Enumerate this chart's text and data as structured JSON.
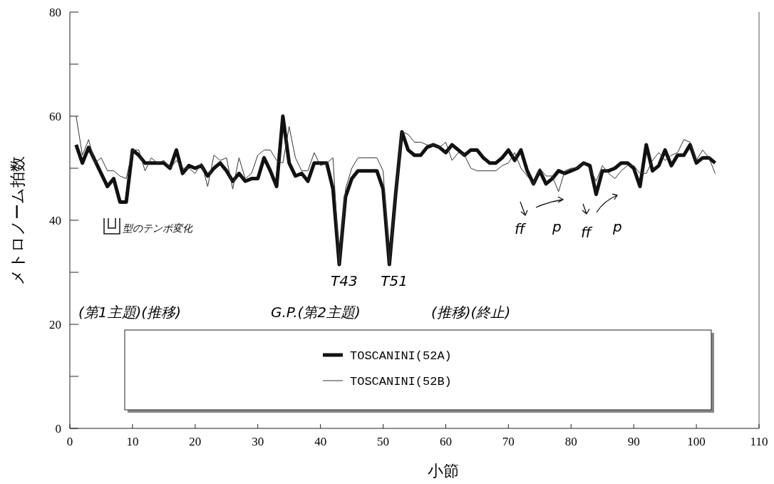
{
  "chart_data": {
    "type": "line",
    "xlabel": "小節",
    "ylabel": "メトロノーム拍数",
    "xlim": [
      0,
      110
    ],
    "xticks": [
      0,
      10,
      20,
      30,
      40,
      50,
      60,
      70,
      80,
      90,
      100,
      110
    ],
    "ylim": [
      0,
      80
    ],
    "yticks": [
      0,
      {
        "value": 10,
        "label": null
      },
      20,
      {
        "value": 30,
        "label": null
      },
      40,
      {
        "value": 50,
        "label": null
      },
      60,
      {
        "value": 70,
        "label": null
      },
      80
    ],
    "grid": false,
    "legend": "bottom",
    "x": [
      1,
      2,
      3,
      4,
      5,
      6,
      7,
      8,
      9,
      10,
      11,
      12,
      13,
      14,
      15,
      16,
      17,
      18,
      19,
      20,
      21,
      22,
      23,
      24,
      25,
      26,
      27,
      28,
      29,
      30,
      31,
      32,
      33,
      34,
      35,
      36,
      37,
      38,
      39,
      40,
      41,
      42,
      43,
      44,
      45,
      46,
      47,
      48,
      49,
      50,
      51,
      52,
      53,
      54,
      55,
      56,
      57,
      58,
      59,
      60,
      61,
      62,
      63,
      64,
      65,
      66,
      67,
      68,
      69,
      70,
      71,
      72,
      73,
      74,
      75,
      76,
      77,
      78,
      79,
      80,
      81,
      82,
      83,
      84,
      85,
      86,
      87,
      88,
      89,
      90,
      91,
      92,
      93,
      94,
      95,
      96,
      97,
      98,
      99,
      100,
      101,
      102,
      103
    ],
    "series": [
      {
        "name": "TOSCANINI(52A)",
        "color": "#111111",
        "values": [
          54.5,
          51,
          54,
          51.5,
          49,
          46.5,
          48,
          43.5,
          43.5,
          53.5,
          52.5,
          51,
          51,
          51,
          51,
          50,
          53.5,
          49,
          50.5,
          50,
          50.5,
          48.5,
          50,
          51,
          49.5,
          47.5,
          49,
          47.5,
          48,
          48,
          52,
          49.5,
          46.5,
          60,
          51,
          48.5,
          49,
          47.5,
          51,
          51,
          51,
          46,
          31.5,
          44.5,
          48,
          49.5,
          49.5,
          49.5,
          49.5,
          46,
          31.5,
          45,
          57,
          53.5,
          52.5,
          52.5,
          54,
          54.5,
          54,
          53,
          54.5,
          53.5,
          52.5,
          53.5,
          53.5,
          52,
          51,
          51,
          52,
          53.5,
          51.5,
          53.5,
          49.5,
          47,
          49.5,
          47,
          48,
          49.5,
          49,
          49.5,
          50,
          51,
          50.5,
          45,
          49.5,
          49.5,
          50,
          51,
          51,
          50,
          46.5,
          54.5,
          49.5,
          50.5,
          53.5,
          50.5,
          52.5,
          52.5,
          54.5,
          51,
          52,
          52,
          51
        ]
      },
      {
        "name": "TOSCANINI(52B)",
        "color": "#333333",
        "values": [
          60,
          52.5,
          55.5,
          51,
          52,
          49.5,
          49.5,
          48.5,
          48,
          53.5,
          53.5,
          49.5,
          52,
          51,
          51.5,
          50,
          51.5,
          50,
          50,
          49,
          51,
          46.5,
          52.5,
          51.5,
          52,
          46,
          52,
          48,
          49,
          52.5,
          53.5,
          53.5,
          51.5,
          51,
          58,
          52,
          49.5,
          49.5,
          53,
          50.5,
          51,
          52,
          31.5,
          46,
          50,
          52,
          52,
          52,
          52,
          49.5,
          31.5,
          45,
          57,
          56.5,
          55,
          55,
          54.5,
          54.5,
          54,
          55,
          51.5,
          53,
          52.5,
          50,
          49.5,
          49.5,
          49.5,
          49.5,
          50.5,
          51,
          53,
          50,
          48.5,
          47,
          50,
          48.5,
          48.5,
          45.5,
          49.5,
          50,
          50,
          51,
          50,
          47.5,
          50.5,
          49,
          48,
          49.5,
          50.5,
          50.5,
          49,
          49,
          51.5,
          53,
          51.5,
          52.5,
          53,
          55.5,
          55,
          51.5,
          53.5,
          52,
          49
        ]
      }
    ],
    "annotations": [
      {
        "text": "T43",
        "x": 43,
        "y": 31.5
      },
      {
        "text": "T51",
        "x": 51,
        "y": 31.5
      },
      "型のテンポ変化",
      "(第1主題)(推移)",
      "G.P.(第2主題)",
      "(推移)(終止)",
      "ff",
      "p",
      "ff",
      "p"
    ]
  }
}
